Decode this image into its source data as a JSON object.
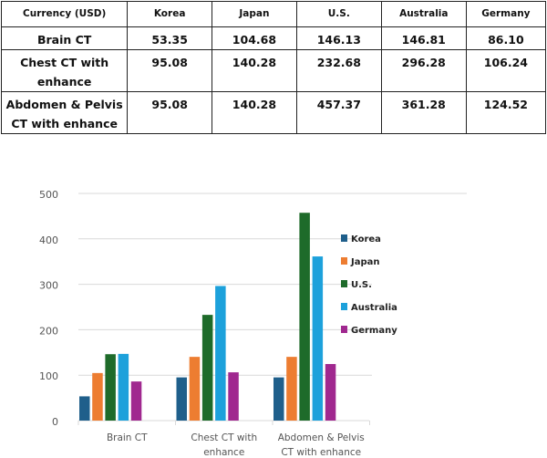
{
  "table": {
    "headers": [
      "Currency (USD)",
      "Korea",
      "Japan",
      "U.S.",
      "Australia",
      "Germany"
    ],
    "rows": [
      {
        "label": "Brain CT",
        "values": [
          "53.35",
          "104.68",
          "146.13",
          "146.81",
          "86.10"
        ]
      },
      {
        "label": "Chest CT with enhance",
        "values": [
          "95.08",
          "140.28",
          "232.68",
          "296.28",
          "106.24"
        ]
      },
      {
        "label": "Abdomen & Pelvis CT with enhance",
        "values": [
          "95.08",
          "140.28",
          "457.37",
          "361.28",
          "124.52"
        ]
      }
    ]
  },
  "chart_data": {
    "type": "bar",
    "categories": [
      [
        "Brain CT"
      ],
      [
        "Chest CT with",
        "enhance"
      ],
      [
        "Abdomen & Pelvis",
        "CT with enhance"
      ]
    ],
    "series": [
      {
        "name": "Korea",
        "color": "#1f5f8b",
        "values": [
          53.35,
          95.08,
          95.08
        ]
      },
      {
        "name": "Japan",
        "color": "#ed7d31",
        "values": [
          104.68,
          140.28,
          140.28
        ]
      },
      {
        "name": "U.S.",
        "color": "#1e6b2a",
        "values": [
          146.13,
          232.68,
          457.37
        ]
      },
      {
        "name": "Australia",
        "color": "#1da1db",
        "values": [
          146.81,
          296.28,
          361.28
        ]
      },
      {
        "name": "Germany",
        "color": "#a0288f",
        "values": [
          86.1,
          106.24,
          124.52
        ]
      }
    ],
    "yticks": [
      "0",
      "100",
      "200",
      "300",
      "400",
      "500"
    ],
    "ylim": [
      0,
      500
    ],
    "grid": true,
    "legend": "right"
  }
}
